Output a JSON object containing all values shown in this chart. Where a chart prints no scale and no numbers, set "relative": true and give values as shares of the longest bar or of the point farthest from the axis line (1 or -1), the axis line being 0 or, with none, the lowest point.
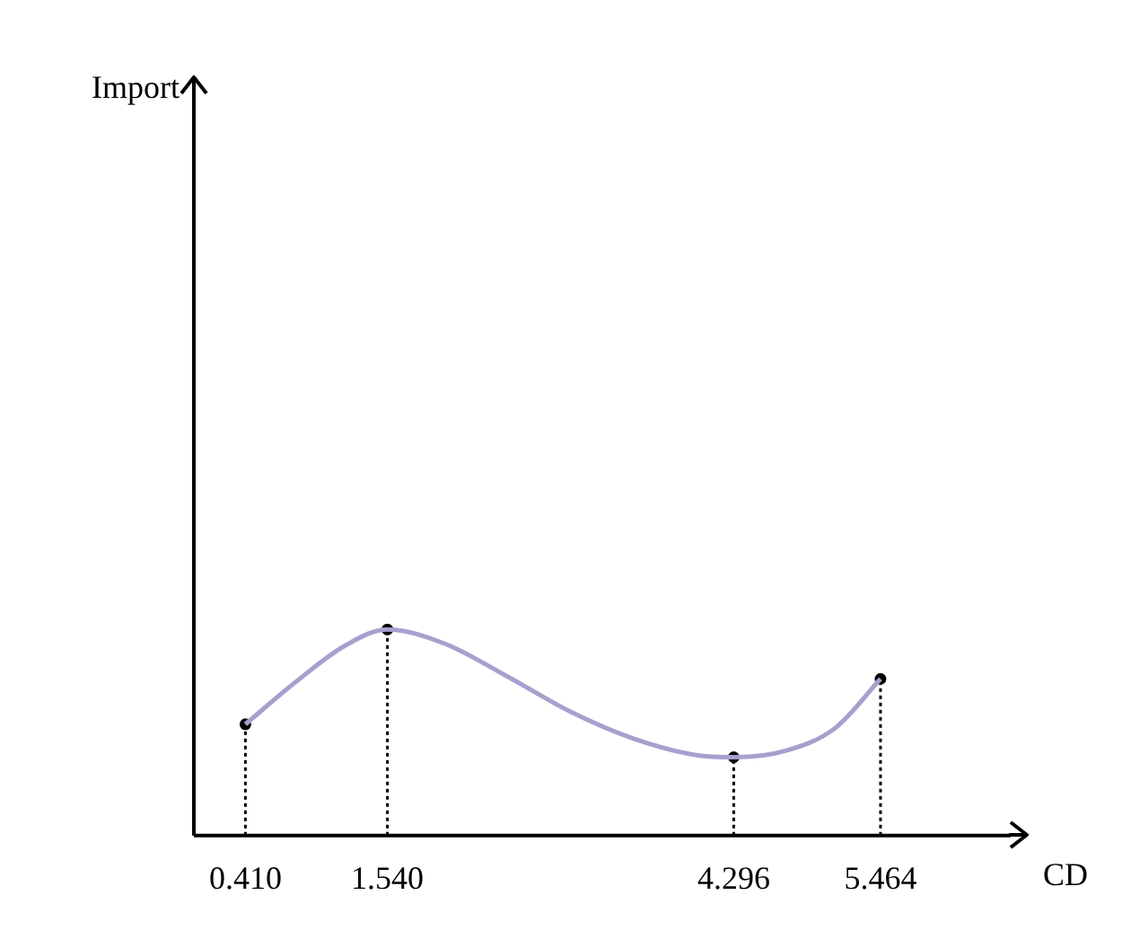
{
  "chart_data": {
    "type": "line",
    "xlabel": "CD",
    "annotations": [
      "Import"
    ],
    "relative": true,
    "x": [
      0.41,
      0.8,
      1.2,
      1.54,
      2.0,
      2.5,
      3.0,
      3.5,
      4.0,
      4.296,
      4.7,
      5.1,
      5.464
    ],
    "series": [
      {
        "color": "#a99fcf",
        "values": [
          0.54,
          0.74,
          0.92,
          1.0,
          0.93,
          0.77,
          0.6,
          0.47,
          0.39,
          0.38,
          0.41,
          0.52,
          0.76
        ]
      },
      {
        "type": "lollipop",
        "color": "#000000",
        "line_style": "dotted",
        "marker": "circle",
        "x": [
          0.41,
          1.54,
          4.296,
          5.464
        ],
        "values": [
          0.54,
          1.0,
          0.38,
          0.76
        ]
      }
    ],
    "xlim": [
      0,
      6.5
    ],
    "xticks": [
      {
        "value": 0.41,
        "label": "0.410"
      },
      {
        "value": 1.54,
        "label": "1.540"
      },
      {
        "value": 4.296,
        "label": "4.296"
      },
      {
        "value": 5.464,
        "label": "5.464"
      }
    ],
    "tick_labels": "x",
    "legend": false,
    "marker": "none",
    "line_style": "solid"
  }
}
